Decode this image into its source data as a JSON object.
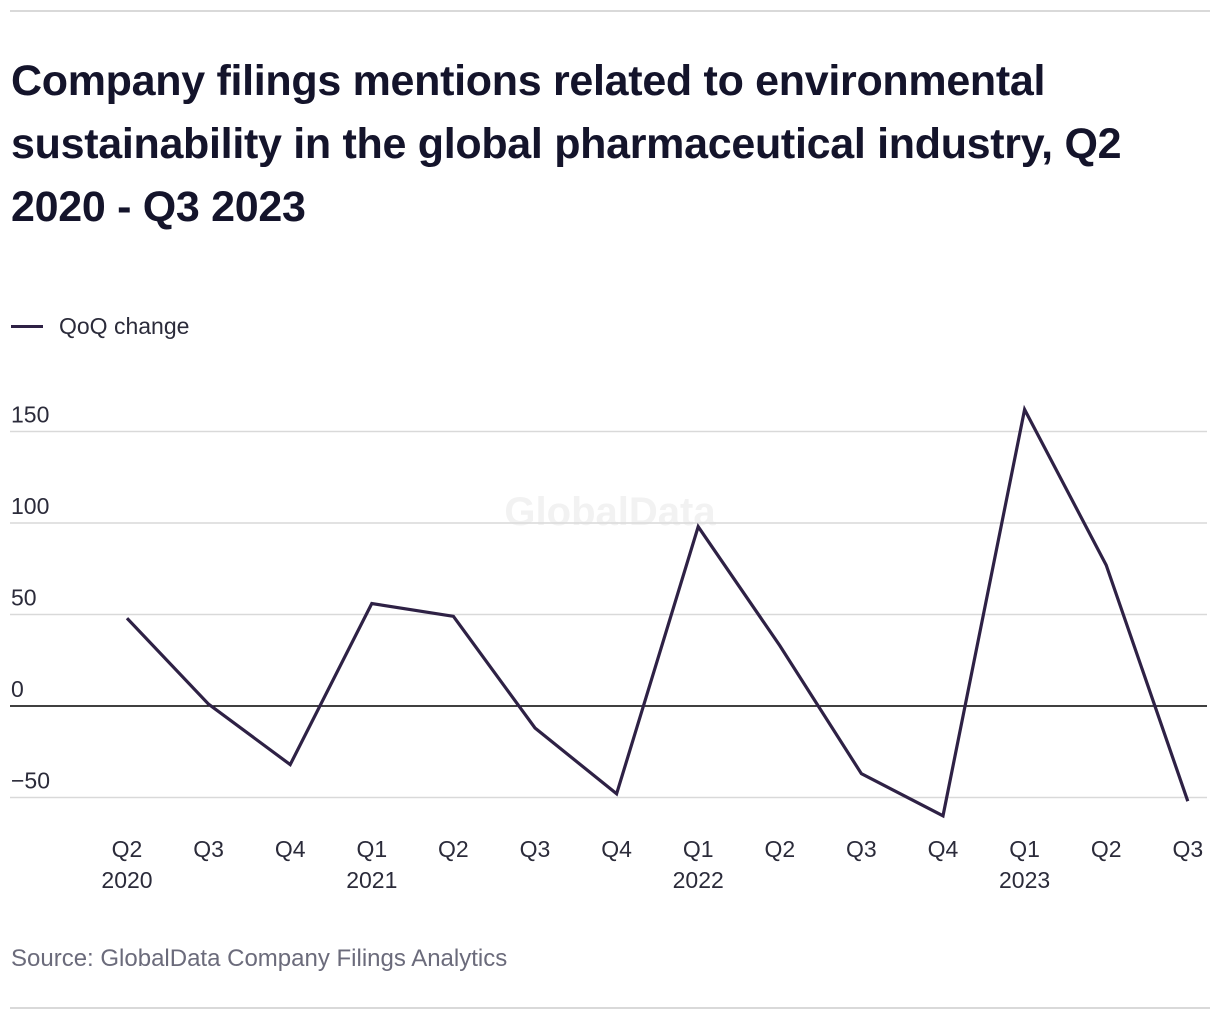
{
  "title": "Company filings mentions related to environmental sustainability in the global pharmaceutical industry, Q2 2020 - Q3 2023",
  "source": "Source: GlobalData Company Filings Analytics",
  "watermark": "GlobalData",
  "colors": {
    "line": "#2e2145",
    "grid": "#d9d9d9",
    "zero_line": "#000000",
    "text": "#14142b",
    "muted": "#6b6b7b"
  },
  "chart_data": {
    "type": "line",
    "title": "Company filings mentions related to environmental sustainability in the global pharmaceutical industry, Q2 2020 - Q3 2023",
    "xlabel": "",
    "ylabel": "",
    "categories": [
      "Q2",
      "Q3",
      "Q4",
      "Q1",
      "Q2",
      "Q3",
      "Q4",
      "Q1",
      "Q2",
      "Q3",
      "Q4",
      "Q1",
      "Q2",
      "Q3"
    ],
    "category_years": [
      "2020",
      "",
      "",
      "2021",
      "",
      "",
      "",
      "2022",
      "",
      "",
      "",
      "2023",
      "",
      ""
    ],
    "series": [
      {
        "name": "QoQ change",
        "values": [
          48,
          1,
          -32,
          56,
          49,
          -12,
          -48,
          98,
          33,
          -37,
          -60,
          162,
          77,
          -52
        ]
      }
    ],
    "yticks": [
      -50,
      0,
      50,
      100,
      150
    ],
    "ytick_labels": [
      "−50",
      "0",
      "50",
      "100",
      "150"
    ],
    "ylim": [
      -60,
      165
    ],
    "grid": true,
    "legend": "top-left"
  }
}
